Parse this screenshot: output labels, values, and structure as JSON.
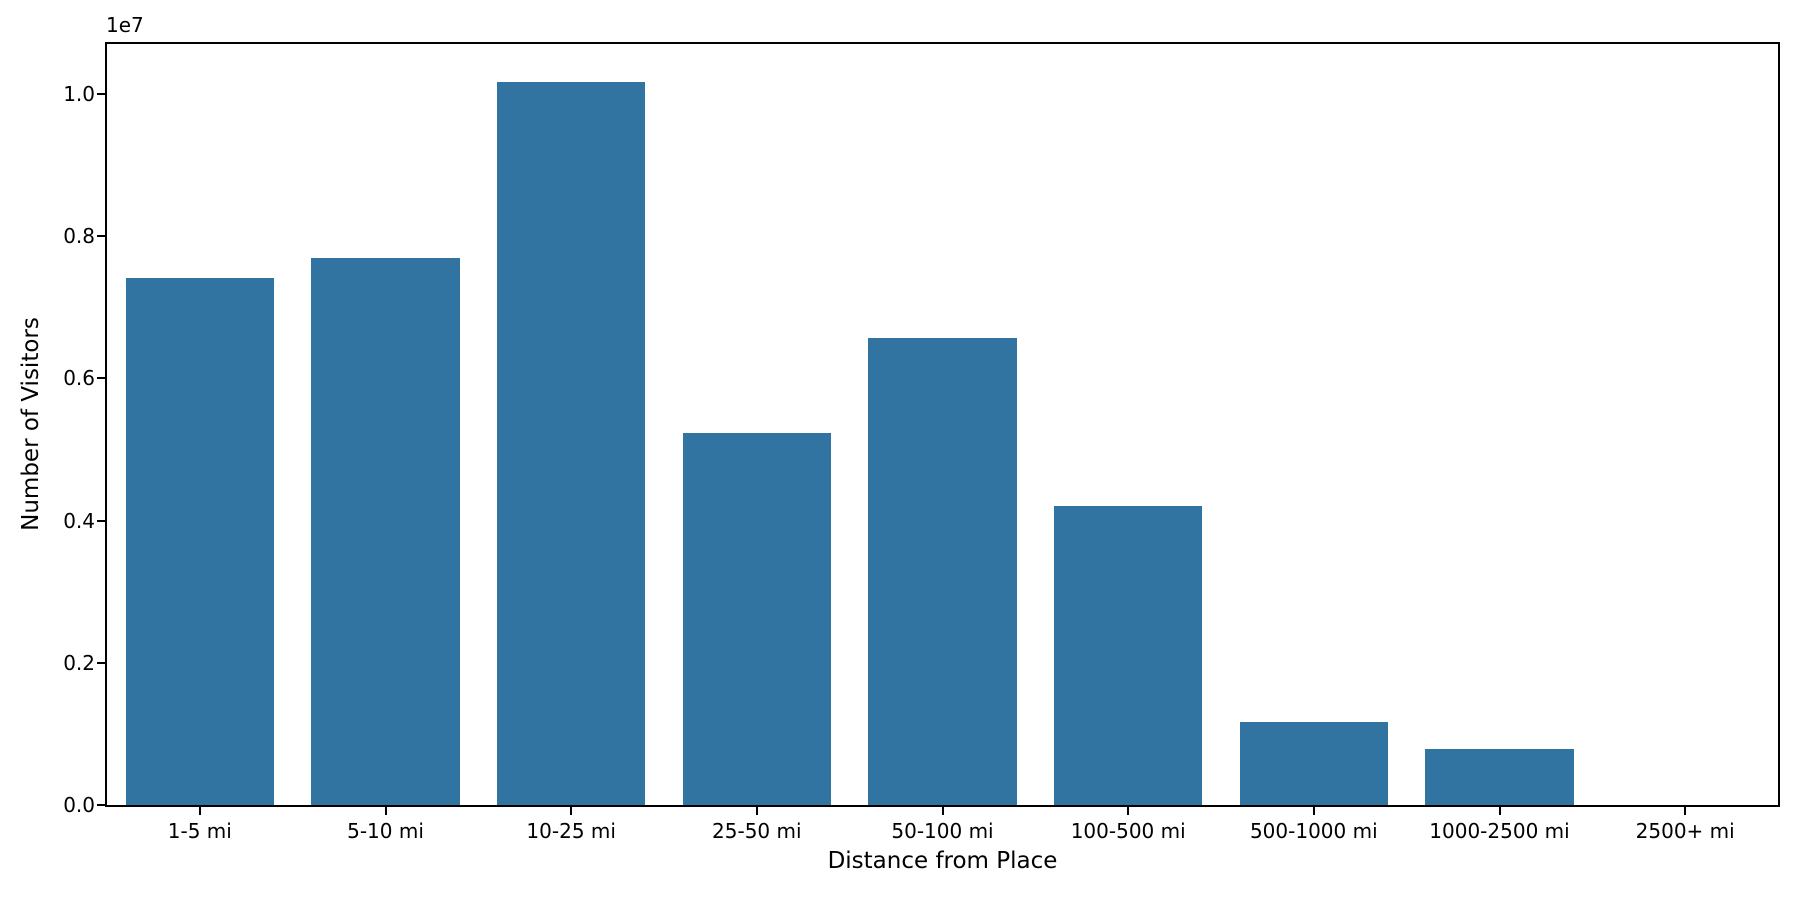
{
  "chart_data": {
    "type": "bar",
    "title": "",
    "xlabel": "Distance from Place",
    "ylabel": "Number of Visitors",
    "categories": [
      "1-5 mi",
      "5-10 mi",
      "10-25 mi",
      "25-50 mi",
      "50-100 mi",
      "100-500 mi",
      "500-1000 mi",
      "1000-2500 mi",
      "2500+ mi"
    ],
    "values": [
      7410000,
      7690000,
      10160000,
      5230000,
      6560000,
      4210000,
      1170000,
      790000,
      0
    ],
    "bar_color": "#3274A1",
    "axis_color": "#000000",
    "text_color": "#000000",
    "ylim": [
      0,
      10700000
    ],
    "yticks": [
      0,
      2000000,
      4000000,
      6000000,
      8000000,
      10000000
    ],
    "ytick_labels": [
      "0.0",
      "0.2",
      "0.4",
      "0.6",
      "0.8",
      "1.0"
    ],
    "offset_text": "1e7",
    "grid": false,
    "legend": null,
    "bar_width_fraction": 0.8
  }
}
